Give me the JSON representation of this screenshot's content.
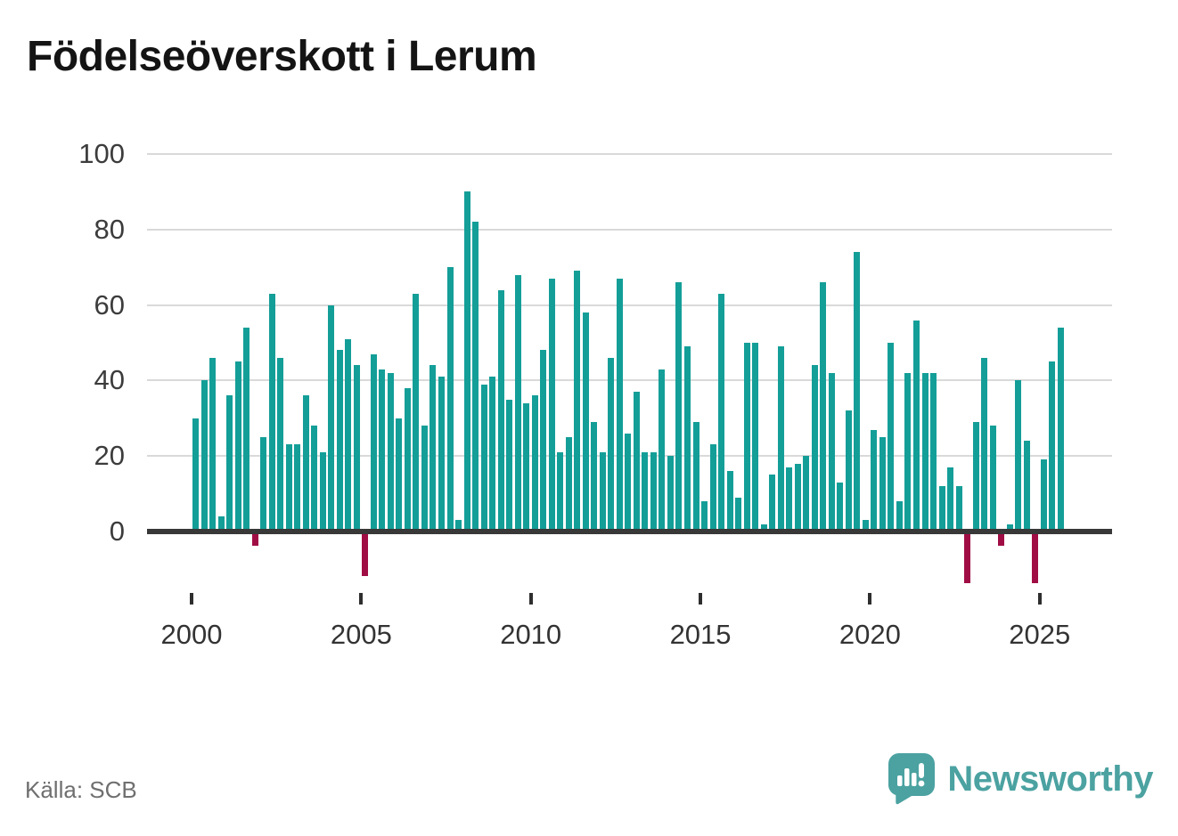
{
  "title": "Födelseöverskott i Lerum",
  "source": "Källa: SCB",
  "logo": {
    "text": "Newsworthy"
  },
  "chart_data": {
    "type": "bar",
    "title": "Födelseöverskott i Lerum",
    "x_start": "2000-Q1",
    "x_end": "2025-Q3",
    "frequency": "quarterly",
    "values": [
      30,
      40,
      46,
      4,
      36,
      45,
      54,
      -3,
      25,
      63,
      46,
      23,
      23,
      36,
      28,
      21,
      60,
      48,
      51,
      44,
      -11,
      47,
      43,
      42,
      30,
      38,
      63,
      28,
      44,
      41,
      70,
      3,
      90,
      82,
      39,
      41,
      64,
      35,
      68,
      34,
      36,
      48,
      67,
      21,
      25,
      69,
      58,
      29,
      21,
      46,
      67,
      26,
      37,
      21,
      21,
      43,
      20,
      66,
      49,
      29,
      8,
      23,
      63,
      16,
      9,
      50,
      50,
      2,
      15,
      49,
      17,
      18,
      20,
      44,
      66,
      42,
      13,
      32,
      74,
      3,
      27,
      25,
      50,
      8,
      42,
      56,
      42,
      42,
      12,
      17,
      12,
      -13,
      29,
      46,
      28,
      -3,
      2,
      40,
      24,
      -13,
      19,
      45,
      54
    ],
    "y_ticks": [
      0,
      20,
      40,
      60,
      80,
      100
    ],
    "x_ticks": [
      2000,
      2005,
      2010,
      2015,
      2020,
      2025
    ],
    "ylim": [
      -15,
      100
    ],
    "grid": true,
    "legend": "none",
    "positive_color": "#149e98",
    "negative_color": "#a00d45",
    "axis_line_color": "#383838",
    "gridline_color": "#d9d9d9"
  }
}
